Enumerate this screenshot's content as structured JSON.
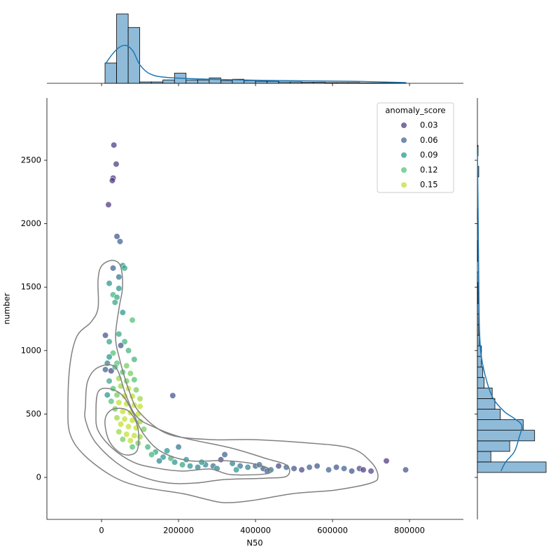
{
  "chart_data": {
    "type": "scatter",
    "xlabel": "N50",
    "ylabel": "number",
    "xlim": [
      -142000,
      940000
    ],
    "ylim": [
      -331,
      2991
    ],
    "xticks": [
      0,
      200000,
      400000,
      600000,
      800000
    ],
    "yticks": [
      0,
      500,
      1000,
      1500,
      2000,
      2500
    ],
    "point_alpha": 0.7,
    "x": [
      32000,
      38000,
      30000,
      28000,
      18000,
      40000,
      48000,
      30000,
      55000,
      60000,
      45000,
      20000,
      45000,
      30000,
      40000,
      35000,
      55000,
      80000,
      10000,
      45000,
      60000,
      20000,
      50000,
      30000,
      70000,
      85000,
      20000,
      15000,
      40000,
      65000,
      25000,
      10000,
      35000,
      55000,
      75000,
      20000,
      45000,
      65000,
      85000,
      30000,
      50000,
      70000,
      90000,
      15000,
      40000,
      60000,
      80000,
      100000,
      185000,
      25000,
      45000,
      65000,
      85000,
      100000,
      35000,
      55000,
      75000,
      95000,
      40000,
      60000,
      80000,
      100000,
      50000,
      70000,
      90000,
      110000,
      45000,
      65000,
      85000,
      100000,
      55000,
      75000,
      95000,
      120000,
      80000,
      140000,
      160000,
      180000,
      190000,
      210000,
      230000,
      250000,
      270000,
      290000,
      310000,
      320000,
      340000,
      360000,
      380000,
      400000,
      420000,
      440000,
      460000,
      480000,
      500000,
      520000,
      540000,
      560000,
      590000,
      610000,
      630000,
      650000,
      670000,
      680000,
      700000,
      740000,
      790000,
      220000,
      200000,
      260000,
      300000,
      350000,
      410000,
      430000,
      170000,
      130000,
      150000
    ],
    "y": [
      2620,
      2470,
      2360,
      2340,
      2150,
      1900,
      1860,
      1650,
      1670,
      1650,
      1580,
      1530,
      1490,
      1440,
      1420,
      1380,
      1300,
      1240,
      1120,
      1130,
      1070,
      1070,
      1040,
      980,
      1000,
      930,
      950,
      900,
      900,
      880,
      840,
      850,
      870,
      830,
      820,
      760,
      780,
      760,
      770,
      700,
      720,
      700,
      690,
      650,
      650,
      640,
      640,
      620,
      645,
      600,
      590,
      580,
      570,
      560,
      540,
      520,
      510,
      500,
      470,
      460,
      450,
      440,
      420,
      400,
      390,
      380,
      360,
      340,
      330,
      320,
      300,
      290,
      270,
      240,
      240,
      200,
      160,
      150,
      120,
      100,
      90,
      80,
      100,
      90,
      140,
      180,
      110,
      90,
      80,
      90,
      70,
      60,
      90,
      80,
      70,
      60,
      80,
      90,
      60,
      80,
      70,
      50,
      70,
      60,
      50,
      130,
      60,
      140,
      240,
      120,
      70,
      60,
      100,
      50,
      210,
      180,
      130
    ],
    "hue": [
      0.03,
      0.03,
      0.03,
      0.03,
      0.03,
      0.05,
      0.06,
      0.06,
      0.09,
      0.1,
      0.07,
      0.09,
      0.09,
      0.11,
      0.1,
      0.1,
      0.09,
      0.12,
      0.05,
      0.1,
      0.11,
      0.1,
      0.05,
      0.12,
      0.11,
      0.11,
      0.09,
      0.08,
      0.12,
      0.13,
      0.04,
      0.06,
      0.11,
      0.12,
      0.13,
      0.1,
      0.14,
      0.13,
      0.12,
      0.12,
      0.14,
      0.15,
      0.13,
      0.09,
      0.13,
      0.15,
      0.15,
      0.14,
      0.05,
      0.12,
      0.15,
      0.16,
      0.16,
      0.15,
      0.13,
      0.16,
      0.16,
      0.15,
      0.14,
      0.16,
      0.16,
      0.14,
      0.15,
      0.16,
      0.16,
      0.13,
      0.14,
      0.16,
      0.15,
      0.14,
      0.13,
      0.15,
      0.13,
      0.11,
      0.12,
      0.1,
      0.09,
      0.11,
      0.09,
      0.1,
      0.09,
      0.08,
      0.08,
      0.07,
      0.04,
      0.06,
      0.08,
      0.07,
      0.08,
      0.06,
      0.05,
      0.07,
      0.04,
      0.06,
      0.05,
      0.04,
      0.06,
      0.05,
      0.06,
      0.05,
      0.06,
      0.05,
      0.04,
      0.03,
      0.04,
      0.03,
      0.05,
      0.09,
      0.07,
      0.09,
      0.08,
      0.09,
      0.07,
      0.06,
      0.09,
      0.11,
      0.08
    ],
    "legend": {
      "title": "anomaly_score",
      "corner": "upper right",
      "entries": [
        {
          "value": 0.03,
          "color": "#46327e"
        },
        {
          "value": 0.06,
          "color": "#365c8d"
        },
        {
          "value": 0.09,
          "color": "#21918c"
        },
        {
          "value": 0.12,
          "color": "#4ac16d"
        },
        {
          "value": 0.15,
          "color": "#bddf26"
        }
      ]
    },
    "contour_color": "#808080",
    "contours": [
      {
        "x": [
          -87300,
          -81800,
          -63600,
          -27300,
          -9100,
          -9100,
          0,
          27300,
          49100,
          54500,
          45500,
          36400,
          45500,
          72700,
          100000,
          172700,
          281800,
          390900,
          518100,
          645400,
          700000,
          718100,
          700000,
          609000,
          500000,
          390900,
          318200,
          263600,
          209100,
          100000,
          27300,
          -45500,
          -81800
        ],
        "y": [
          563,
          894,
          1115,
          1225,
          1336,
          1557,
          1667,
          1711,
          1667,
          1501,
          1336,
          1115,
          949,
          673,
          508,
          342,
          298,
          298,
          276,
          232,
          121,
          11,
          -44,
          -99,
          -127,
          -182,
          -199,
          -166,
          -127,
          -72,
          11,
          177,
          342
        ]
      },
      {
        "x": [
          -41800,
          -36400,
          -9100,
          36400,
          63600,
          90900,
          136400,
          209100,
          336300,
          427200,
          481800,
          481800,
          427200,
          318200,
          245400,
          172700,
          100000,
          36400,
          -18200,
          -41800
        ],
        "y": [
          563,
          756,
          867,
          867,
          646,
          480,
          397,
          315,
          232,
          149,
          94,
          11,
          -6,
          -17,
          -44,
          -44,
          11,
          121,
          287,
          453
        ]
      },
      {
        "x": [
          -14500,
          -9100,
          18200,
          54500,
          81800,
          109100,
          154500,
          227200,
          318200,
          390900,
          436300,
          427200,
          336300,
          281800,
          209100,
          136400,
          81800,
          27300,
          -9100
        ],
        "y": [
          508,
          673,
          701,
          646,
          508,
          342,
          204,
          132,
          132,
          110,
          66,
          28,
          22,
          66,
          50,
          77,
          121,
          232,
          370
        ]
      },
      {
        "x": [
          9100,
          27300,
          63600,
          87300,
          96400,
          92700,
          72700,
          45500,
          18200
        ],
        "y": [
          453,
          535,
          535,
          453,
          342,
          215,
          177,
          199,
          298
        ]
      }
    ],
    "marginal_x": {
      "type": "histogram",
      "color": "#8fbbd9",
      "edgecolor": "#000000",
      "ylim": [
        0,
        209
      ],
      "bins": [
        9000,
        39100,
        69200,
        99200,
        129300,
        159400,
        189500,
        219500,
        249600,
        279700,
        309800,
        339800,
        369900,
        400000,
        430100,
        460200,
        490200,
        520300,
        550400,
        580500,
        610500,
        640600,
        670700,
        700800,
        730800,
        760900,
        791000
      ],
      "counts": [
        60,
        205,
        165,
        4,
        4,
        10,
        30,
        10,
        10,
        16,
        8,
        12,
        8,
        6,
        6,
        4,
        4,
        3,
        3,
        2,
        2,
        2,
        1,
        1,
        1,
        1
      ],
      "kde": {
        "color": "#1f77b4",
        "x": [
          9100,
          27300,
          45500,
          63600,
          81800,
          100000,
          127300,
          172700,
          281800,
          463600,
          645400,
          790900
        ],
        "y": [
          56,
          85,
          106,
          112,
          95,
          54,
          27,
          17,
          12,
          8,
          6,
          2
        ]
      }
    },
    "marginal_y": {
      "type": "histogram",
      "color": "#8fbbd9",
      "edgecolor": "#000000",
      "xlim": [
        0,
        104
      ],
      "bins": [
        39,
        122,
        205,
        288,
        372,
        455,
        538,
        621,
        705,
        788,
        871,
        954,
        1037,
        1121,
        1204,
        1287,
        1370,
        1453,
        1537,
        1620,
        1703,
        1786,
        1869,
        1953,
        2036,
        2119,
        2202,
        2285,
        2369,
        2452,
        2535,
        2618
      ],
      "counts": [
        102,
        20,
        48,
        85,
        68,
        34,
        26,
        22,
        10,
        8,
        6,
        6,
        3,
        2,
        2,
        2,
        1,
        1,
        2,
        0,
        1,
        1,
        0,
        0,
        1,
        0,
        0,
        0,
        2,
        0,
        1
      ],
      "kde": {
        "color": "#1f77b4",
        "y": [
          50,
          121,
          204,
          315,
          408,
          464,
          519,
          618,
          756,
          949,
          1170,
          1557,
          2109,
          2605
        ],
        "x": [
          35,
          42,
          55,
          62,
          66,
          55,
          40,
          24,
          14,
          6,
          3,
          2,
          1,
          0
        ]
      }
    }
  }
}
